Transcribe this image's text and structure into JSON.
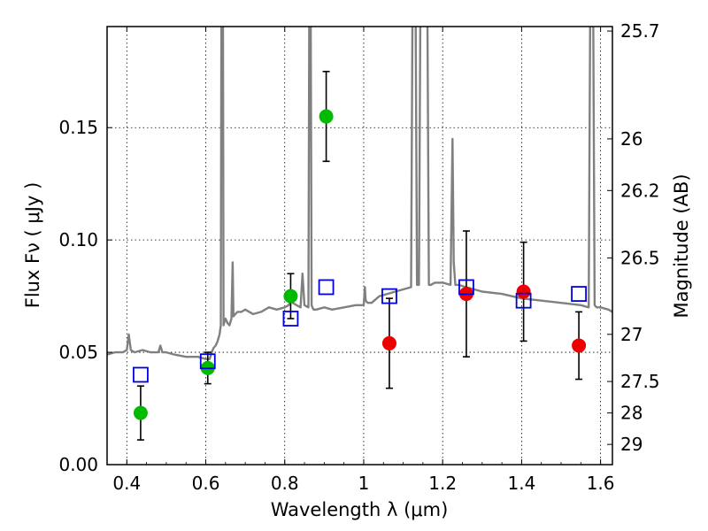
{
  "chart_data": {
    "type": "scatter",
    "xlabel": "Wavelength  λ (μm)",
    "ylabel": "Flux  Fν  ( μJy )",
    "y2label": "Magnitude (AB)",
    "xlim": [
      0.35,
      1.63
    ],
    "ylim": [
      0.0,
      0.195
    ],
    "grid": true,
    "x_ticks": [
      {
        "value": 0.4,
        "label": "0.4"
      },
      {
        "value": 0.6,
        "label": "0.6"
      },
      {
        "value": 0.8,
        "label": "0.8"
      },
      {
        "value": 1.0,
        "label": "1"
      },
      {
        "value": 1.2,
        "label": "1.2"
      },
      {
        "value": 1.4,
        "label": "1.4"
      },
      {
        "value": 1.6,
        "label": "1.6"
      }
    ],
    "y_ticks": [
      {
        "value": 0.0,
        "label": "0.00"
      },
      {
        "value": 0.05,
        "label": "0.05"
      },
      {
        "value": 0.1,
        "label": "0.10"
      },
      {
        "value": 0.15,
        "label": "0.15"
      }
    ],
    "y2_ticks": [
      {
        "flux": 0.193,
        "label": "25.7"
      },
      {
        "flux": 0.145,
        "label": "26"
      },
      {
        "flux": 0.122,
        "label": "26.2"
      },
      {
        "flux": 0.092,
        "label": "26.5"
      },
      {
        "flux": 0.058,
        "label": "27"
      },
      {
        "flux": 0.037,
        "label": "27.5"
      },
      {
        "flux": 0.023,
        "label": "28"
      },
      {
        "flux": 0.009,
        "label": "29"
      }
    ],
    "series": [
      {
        "name": "green detections",
        "color": "#00bb00",
        "marker": "circle",
        "points": [
          {
            "x": 0.435,
            "y": 0.023,
            "err_low": 0.012,
            "err_high": 0.012
          },
          {
            "x": 0.605,
            "y": 0.043,
            "err_low": 0.007,
            "err_high": 0.007
          },
          {
            "x": 0.815,
            "y": 0.075,
            "err_low": 0.01,
            "err_high": 0.01
          },
          {
            "x": 0.905,
            "y": 0.155,
            "err_low": 0.02,
            "err_high": 0.02
          }
        ]
      },
      {
        "name": "red detections",
        "color": "#ee0000",
        "marker": "circle",
        "points": [
          {
            "x": 1.065,
            "y": 0.054,
            "err_low": 0.02,
            "err_high": 0.02
          },
          {
            "x": 1.26,
            "y": 0.076,
            "err_low": 0.028,
            "err_high": 0.028
          },
          {
            "x": 1.405,
            "y": 0.077,
            "err_low": 0.022,
            "err_high": 0.022
          },
          {
            "x": 1.545,
            "y": 0.053,
            "err_low": 0.015,
            "err_high": 0.015
          }
        ]
      },
      {
        "name": "model photometry",
        "color": "#0000dd",
        "marker": "square-open",
        "points": [
          {
            "x": 0.435,
            "y": 0.04
          },
          {
            "x": 0.605,
            "y": 0.046
          },
          {
            "x": 0.815,
            "y": 0.065
          },
          {
            "x": 0.905,
            "y": 0.079
          },
          {
            "x": 1.065,
            "y": 0.075
          },
          {
            "x": 1.26,
            "y": 0.079
          },
          {
            "x": 1.405,
            "y": 0.073
          },
          {
            "x": 1.545,
            "y": 0.076
          }
        ]
      }
    ],
    "model_spectrum": {
      "name": "SED model",
      "color": "#808080",
      "x": [
        0.35,
        0.37,
        0.39,
        0.4,
        0.405,
        0.41,
        0.42,
        0.44,
        0.46,
        0.48,
        0.485,
        0.49,
        0.5,
        0.52,
        0.55,
        0.58,
        0.6,
        0.61,
        0.615,
        0.62,
        0.625,
        0.63,
        0.635,
        0.638,
        0.64,
        0.643,
        0.645,
        0.648,
        0.65,
        0.655,
        0.66,
        0.665,
        0.668,
        0.67,
        0.675,
        0.68,
        0.69,
        0.7,
        0.72,
        0.74,
        0.76,
        0.78,
        0.8,
        0.81,
        0.815,
        0.82,
        0.83,
        0.84,
        0.845,
        0.85,
        0.86,
        0.863,
        0.865,
        0.868,
        0.87,
        0.873,
        0.88,
        0.9,
        0.92,
        0.95,
        0.98,
        1.0,
        1.003,
        1.005,
        1.01,
        1.02,
        1.04,
        1.06,
        1.08,
        1.1,
        1.12,
        1.125,
        1.13,
        1.135,
        1.14,
        1.145,
        1.15,
        1.155,
        1.16,
        1.165,
        1.17,
        1.18,
        1.2,
        1.22,
        1.225,
        1.228,
        1.232,
        1.24,
        1.26,
        1.28,
        1.3,
        1.35,
        1.4,
        1.45,
        1.5,
        1.55,
        1.57,
        1.575,
        1.58,
        1.585,
        1.59,
        1.6,
        1.62,
        1.63
      ],
      "y": [
        0.049,
        0.05,
        0.05,
        0.051,
        0.058,
        0.051,
        0.05,
        0.051,
        0.05,
        0.05,
        0.053,
        0.05,
        0.05,
        0.049,
        0.048,
        0.048,
        0.047,
        0.047,
        0.05,
        0.052,
        0.053,
        0.055,
        0.058,
        0.062,
        0.25,
        0.25,
        0.062,
        0.064,
        0.065,
        0.063,
        0.062,
        0.065,
        0.09,
        0.066,
        0.067,
        0.068,
        0.068,
        0.069,
        0.067,
        0.068,
        0.07,
        0.069,
        0.07,
        0.071,
        0.073,
        0.072,
        0.071,
        0.07,
        0.085,
        0.071,
        0.07,
        0.25,
        0.25,
        0.071,
        0.07,
        0.069,
        0.069,
        0.07,
        0.069,
        0.07,
        0.071,
        0.071,
        0.079,
        0.073,
        0.072,
        0.072,
        0.075,
        0.076,
        0.077,
        0.078,
        0.079,
        0.25,
        0.25,
        0.08,
        0.08,
        0.25,
        0.25,
        0.25,
        0.25,
        0.08,
        0.08,
        0.081,
        0.081,
        0.08,
        0.145,
        0.09,
        0.08,
        0.08,
        0.079,
        0.078,
        0.077,
        0.076,
        0.074,
        0.073,
        0.072,
        0.071,
        0.07,
        0.25,
        0.25,
        0.071,
        0.07,
        0.07,
        0.069,
        0.068
      ]
    }
  }
}
